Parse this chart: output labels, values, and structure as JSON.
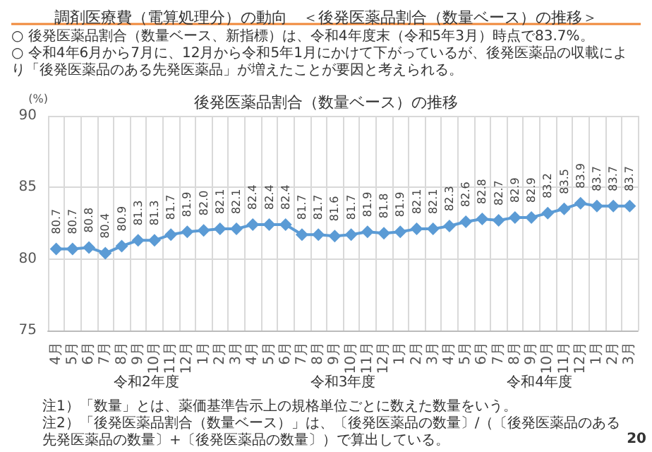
{
  "chart_data": {
    "type": "line",
    "title": "調剤医療費（電算処理分）の動向　＜後発医薬品割合（数量ベース）の推移＞",
    "subtitle": "後発医薬品割合（数量ベース）の推移",
    "ylabel": "(%)",
    "categories": [
      "4月",
      "5月",
      "6月",
      "7月",
      "8月",
      "9月",
      "10月",
      "11月",
      "12月",
      "1月",
      "2月",
      "3月",
      "4月",
      "5月",
      "6月",
      "7月",
      "8月",
      "9月",
      "10月",
      "11月",
      "12月",
      "1月",
      "2月",
      "3月",
      "4月",
      "5月",
      "6月",
      "7月",
      "8月",
      "9月",
      "10月",
      "11月",
      "12月",
      "1月",
      "2月",
      "3月"
    ],
    "series": [
      {
        "color": "#5b9bd5",
        "values": [
          80.7,
          80.7,
          80.8,
          80.4,
          80.9,
          81.3,
          81.3,
          81.7,
          81.9,
          82.0,
          82.1,
          82.1,
          82.4,
          82.4,
          82.4,
          81.7,
          81.7,
          81.6,
          81.7,
          81.9,
          81.8,
          81.9,
          82.1,
          82.1,
          82.3,
          82.6,
          82.8,
          82.7,
          82.9,
          82.9,
          83.2,
          83.5,
          83.9,
          83.7,
          83.7,
          83.7
        ],
        "value_labels": [
          "80.7",
          "80.7",
          "80.8",
          "80.4",
          "80.9",
          "81.3",
          "81.3",
          "81.7",
          "81.9",
          "82.0",
          "82.1",
          "82.1",
          "82.4",
          "82.4",
          "82.4",
          "81.7",
          "81.7",
          "81.6",
          "81.7",
          "81.9",
          "81.8",
          "81.9",
          "82.1",
          "82.1",
          "82.3",
          "82.6",
          "82.8",
          "82.7",
          "82.9",
          "82.9",
          "83.2",
          "83.5",
          "83.9",
          "83.7",
          "83.7",
          "83.7"
        ]
      }
    ],
    "ylim": [
      75,
      90
    ],
    "yticks": [
      75,
      80,
      85,
      90
    ],
    "grid": true,
    "marker": "diamond",
    "annotations": [
      "○ 後発医薬品割合（数量ベース、新指標）は、令和4年度末（令和5年3月）時点で83.7%。",
      "○ 令和4年6月から7月に、12月から令和5年1月にかけて下がっているが、後発医薬品の収載により「後発医薬品のある先発医薬品」が増えたことが要因と考えられる。",
      "令和2年度",
      "令和3年度",
      "令和4年度",
      "注1）「数量」とは、薬価基準告示上の規格単位ごとに数えた数量をいう。",
      "注2）「後発医薬品割合（数量ベース）」は、〔後発医薬品の数量〕/（〔後発医薬品のある先発医薬品の数量〕+〔後発医薬品の数量〕）で算出している。",
      "20"
    ]
  }
}
